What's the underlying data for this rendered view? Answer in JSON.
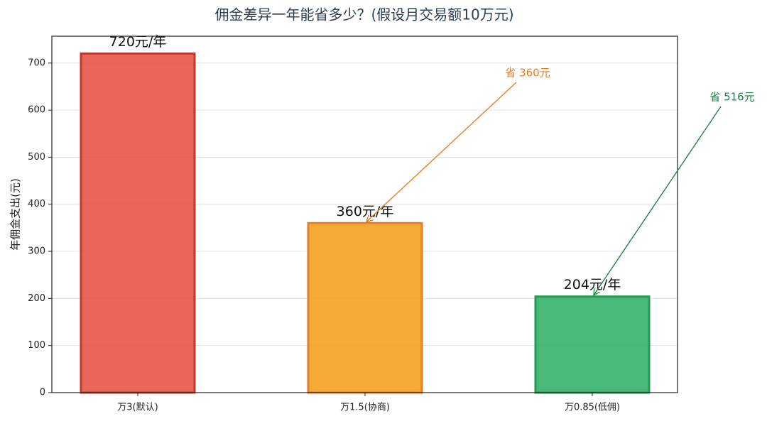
{
  "chart_data": {
    "type": "bar",
    "title": "佣金差异一年能省多少？(假设月交易额10万元)",
    "ylabel": "年佣金支出(元)",
    "categories": [
      "万3(默认)",
      "万1.5(协商)",
      "万0.85(低佣)"
    ],
    "values": [
      720,
      360,
      204
    ],
    "value_labels": [
      "720元/年",
      "360元/年",
      "204元/年"
    ],
    "colors": [
      "#e74c3c",
      "#f39c12",
      "#27ae60"
    ],
    "edge_colors": [
      "#c0392b",
      "#e67e22",
      "#229954"
    ],
    "ylim": [
      0,
      757
    ],
    "yticks": [
      0,
      100,
      200,
      300,
      400,
      500,
      600,
      700
    ],
    "grid": true,
    "annotations": [
      {
        "text": "省 360元",
        "color": "#e67e22"
      },
      {
        "text": "省 516元",
        "color": "#1e8449"
      }
    ]
  }
}
